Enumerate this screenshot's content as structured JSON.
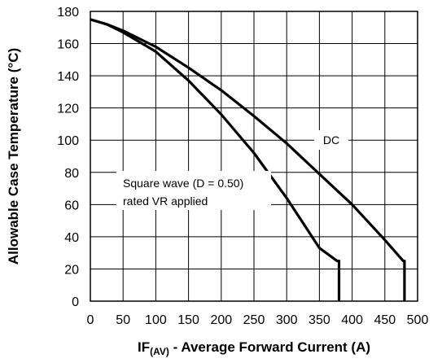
{
  "chart_data": {
    "type": "line",
    "xlabel": {
      "main": "IF",
      "sub": "(AV)",
      "rest": " - Average Forward Current (A)"
    },
    "ylabel": "Allowable Case Temperature (°C)",
    "xlim": [
      0,
      500
    ],
    "ylim": [
      0,
      180
    ],
    "xticks": [
      0,
      50,
      100,
      150,
      200,
      250,
      300,
      350,
      400,
      450,
      500
    ],
    "yticks": [
      0,
      20,
      40,
      60,
      80,
      100,
      120,
      140,
      160,
      180
    ],
    "grid": true,
    "series": [
      {
        "name": "DC",
        "x": [
          0,
          25,
          50,
          100,
          150,
          200,
          250,
          300,
          350,
          400,
          450,
          478,
          480,
          480
        ],
        "y": [
          175,
          172,
          168,
          158,
          145,
          131,
          115,
          98,
          79,
          60,
          38,
          25,
          25,
          0
        ]
      },
      {
        "name": "Square wave (D = 0.50)",
        "x": [
          0,
          25,
          50,
          100,
          150,
          200,
          250,
          300,
          350,
          377,
          380,
          380
        ],
        "y": [
          175,
          172,
          167,
          155,
          137,
          116,
          92,
          64,
          33,
          25,
          25,
          0
        ]
      }
    ],
    "annotations": [
      {
        "name": "annotation-dc",
        "lines": [
          "DC"
        ]
      },
      {
        "name": "annotation-square-wave",
        "lines": [
          "Square wave (D = 0.50)",
          "rated VR applied"
        ]
      }
    ]
  }
}
